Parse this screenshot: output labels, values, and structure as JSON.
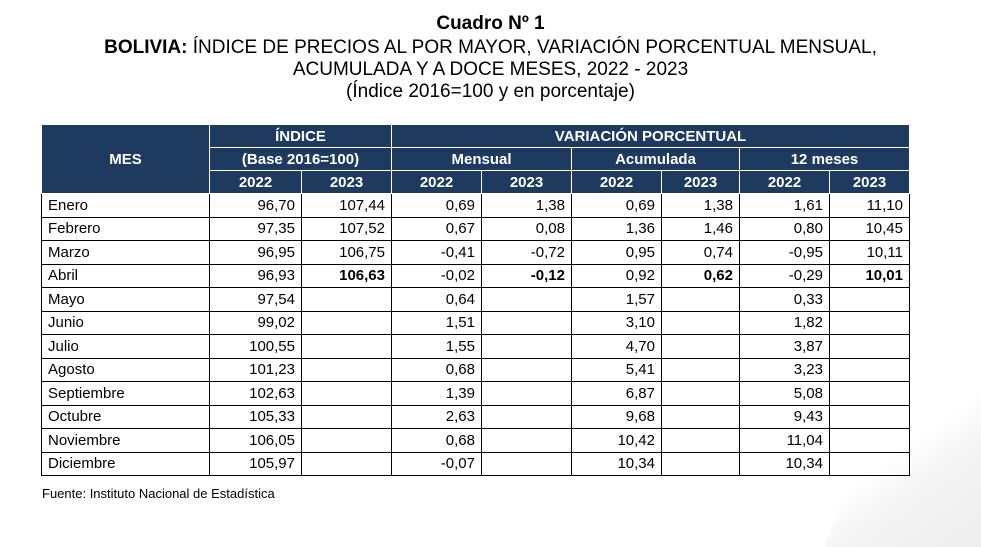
{
  "title": "Cuadro Nº 1",
  "subtitle_bold": "BOLIVIA:",
  "subtitle_rest": " ÍNDICE DE PRECIOS AL POR MAYOR, VARIACIÓN PORCENTUAL MENSUAL,",
  "subtitle_line2": "ACUMULADA Y A DOCE MESES, 2022 - 2023",
  "subtitle_line3": "(Índice 2016=100 y en porcentaje)",
  "header": {
    "mes": "MES",
    "indice": "ÍNDICE",
    "indice_base": "(Base 2016=100)",
    "variacion": "VARIACIÓN PORCENTUAL",
    "mensual": "Mensual",
    "acumulada": "Acumulada",
    "doce_meses": "12 meses",
    "years": [
      "2022",
      "2023",
      "2022",
      "2023",
      "2022",
      "2023",
      "2022",
      "2023"
    ]
  },
  "rows": [
    {
      "mes": "Enero",
      "v": [
        "96,70",
        "107,44",
        "0,69",
        "1,38",
        "0,69",
        "1,38",
        "1,61",
        "11,10"
      ]
    },
    {
      "mes": "Febrero",
      "v": [
        "97,35",
        "107,52",
        "0,67",
        "0,08",
        "1,36",
        "1,46",
        "0,80",
        "10,45"
      ]
    },
    {
      "mes": "Marzo",
      "v": [
        "96,95",
        "106,75",
        "-0,41",
        "-0,72",
        "0,95",
        "0,74",
        "-0,95",
        "10,11"
      ]
    },
    {
      "mes": "Abril",
      "v": [
        "96,93",
        "106,63",
        "-0,02",
        "-0,12",
        "0,92",
        "0,62",
        "-0,29",
        "10,01"
      ]
    },
    {
      "mes": "Mayo",
      "v": [
        "97,54",
        "",
        "0,64",
        "",
        "1,57",
        "",
        "0,33",
        ""
      ]
    },
    {
      "mes": "Junio",
      "v": [
        "99,02",
        "",
        "1,51",
        "",
        "3,10",
        "",
        "1,82",
        ""
      ]
    },
    {
      "mes": "Julio",
      "v": [
        "100,55",
        "",
        "1,55",
        "",
        "4,70",
        "",
        "3,87",
        ""
      ]
    },
    {
      "mes": "Agosto",
      "v": [
        "101,23",
        "",
        "0,68",
        "",
        "5,41",
        "",
        "3,23",
        ""
      ]
    },
    {
      "mes": "Septiembre",
      "v": [
        "102,63",
        "",
        "1,39",
        "",
        "6,87",
        "",
        "5,08",
        ""
      ]
    },
    {
      "mes": "Octubre",
      "v": [
        "105,33",
        "",
        "2,63",
        "",
        "9,68",
        "",
        "9,43",
        ""
      ]
    },
    {
      "mes": "Noviembre",
      "v": [
        "106,05",
        "",
        "0,68",
        "",
        "10,42",
        "",
        "11,04",
        ""
      ]
    },
    {
      "mes": "Diciembre",
      "v": [
        "105,97",
        "",
        "-0,07",
        "",
        "10,34",
        "",
        "10,34",
        ""
      ]
    }
  ],
  "source": "Fuente: Instituto Nacional de Estadística"
}
